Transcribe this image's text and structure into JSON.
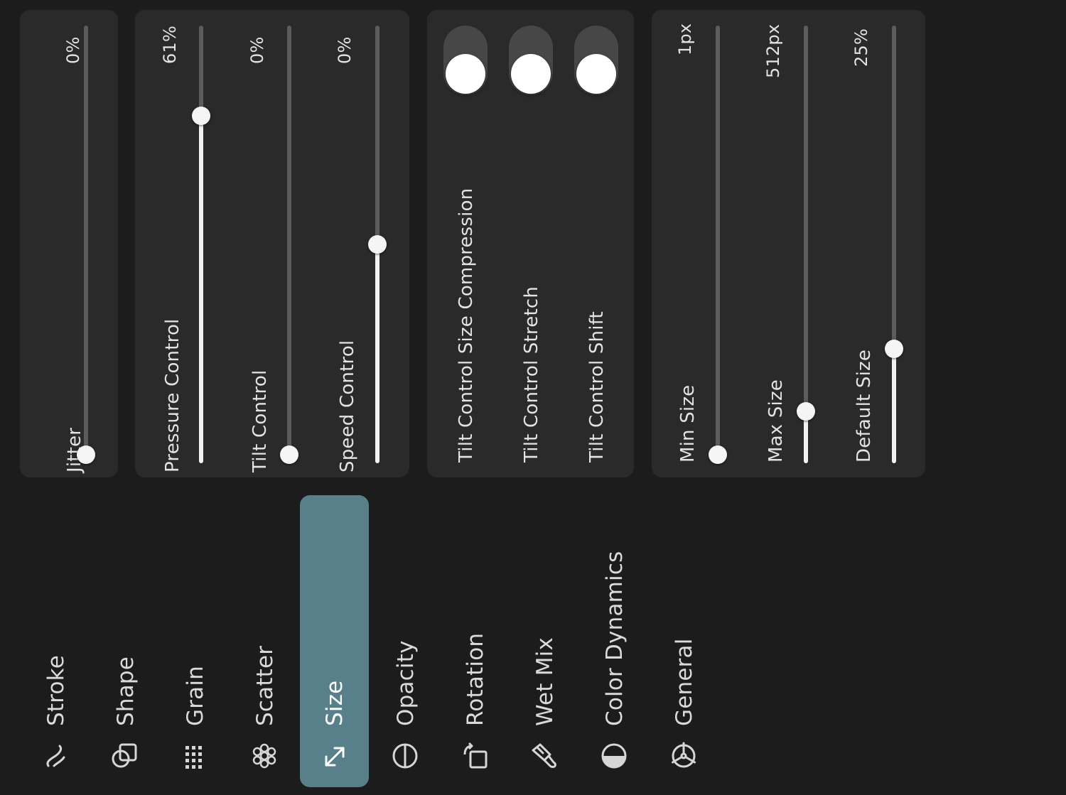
{
  "tabs": [
    {
      "label": "Stroke",
      "icon": "stroke-path-icon"
    },
    {
      "label": "Shape",
      "icon": "shape-icon"
    },
    {
      "label": "Grain",
      "icon": "grain-icon"
    },
    {
      "label": "Scatter",
      "icon": "scatter-icon"
    },
    {
      "label": "Size",
      "icon": "resize-arrows-icon",
      "active": true
    },
    {
      "label": "Opacity",
      "icon": "opacity-icon"
    },
    {
      "label": "Rotation",
      "icon": "rotation-icon"
    },
    {
      "label": "Wet Mix",
      "icon": "brush-icon"
    },
    {
      "label": "Color Dynamics",
      "icon": "color-dynamics-icon"
    },
    {
      "label": "General",
      "icon": "gear-icon"
    }
  ],
  "jitter": {
    "label": "Jitter",
    "value": "0%",
    "level": 0
  },
  "controls": [
    {
      "label": "Pressure Control",
      "value": "61%",
      "level": 0.81
    },
    {
      "label": "Tilt Control",
      "value": "0%",
      "level": 0
    },
    {
      "label": "Speed Control",
      "value": "0%",
      "level": 0.5
    }
  ],
  "toggles": [
    {
      "label": "Tilt Control Size Compression",
      "on": true
    },
    {
      "label": "Tilt Control Stretch",
      "on": true
    },
    {
      "label": "Tilt Control Shift",
      "on": true
    }
  ],
  "sizes": [
    {
      "label": "Min Size",
      "value": "1px",
      "level": 0
    },
    {
      "label": "Max Size",
      "value": "512px",
      "level": 0.12
    },
    {
      "label": "Default Size",
      "value": "25%",
      "level": 0.26
    }
  ],
  "colors": {
    "accent": "#58808b",
    "panel": "#2a2a2a",
    "background": "#1c1c1c"
  }
}
